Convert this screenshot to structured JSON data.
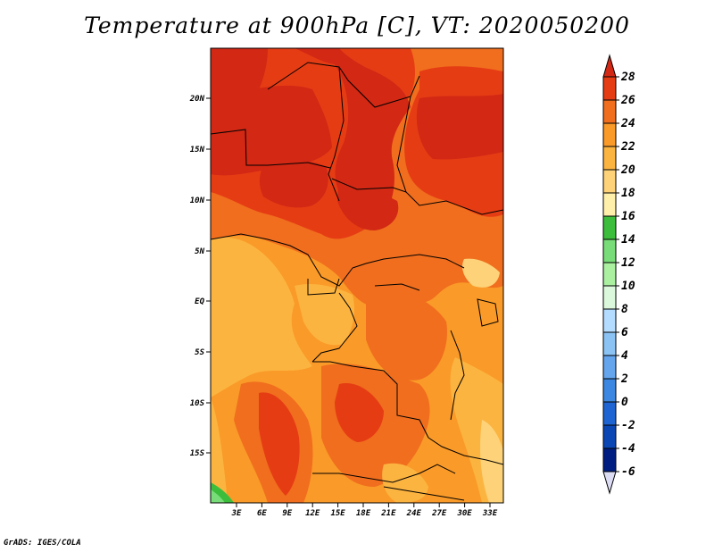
{
  "title": "Temperature at 900hPa [C], VT: 2020050200",
  "footer": "GrADS: IGES/COLA",
  "map": {
    "lat_ticks": [
      "20N",
      "15N",
      "10N",
      "5N",
      "EQ",
      "5S",
      "10S",
      "15S"
    ],
    "lon_ticks": [
      "3E",
      "6E",
      "9E",
      "12E",
      "15E",
      "18E",
      "21E",
      "24E",
      "27E",
      "30E",
      "33E"
    ]
  },
  "colorbar": {
    "labels": [
      "28",
      "26",
      "24",
      "22",
      "20",
      "18",
      "16",
      "14",
      "12",
      "10",
      "8",
      "6",
      "4",
      "2",
      "0",
      "-2",
      "-4",
      "-6"
    ],
    "colors": {
      "above_28": "#d22814",
      "26_28": "#e63c14",
      "24_26": "#f06e1e",
      "22_24": "#fa9a28",
      "20_22": "#fcb440",
      "18_20": "#fdd278",
      "16_18": "#fef0aa",
      "14_16": "#3cbe3c",
      "12_14": "#78dc78",
      "10_12": "#aaf0a0",
      "8_10": "#dcf8dc",
      "6_8": "#b4dcff",
      "4_6": "#8cc3f5",
      "2_4": "#64a5ee",
      "0_2": "#3c87e1",
      "m2_0": "#1e64d2",
      "m4_m2": "#0a46b4",
      "m6_m4": "#001e82",
      "below_m6": "#dcdcf5"
    }
  }
}
